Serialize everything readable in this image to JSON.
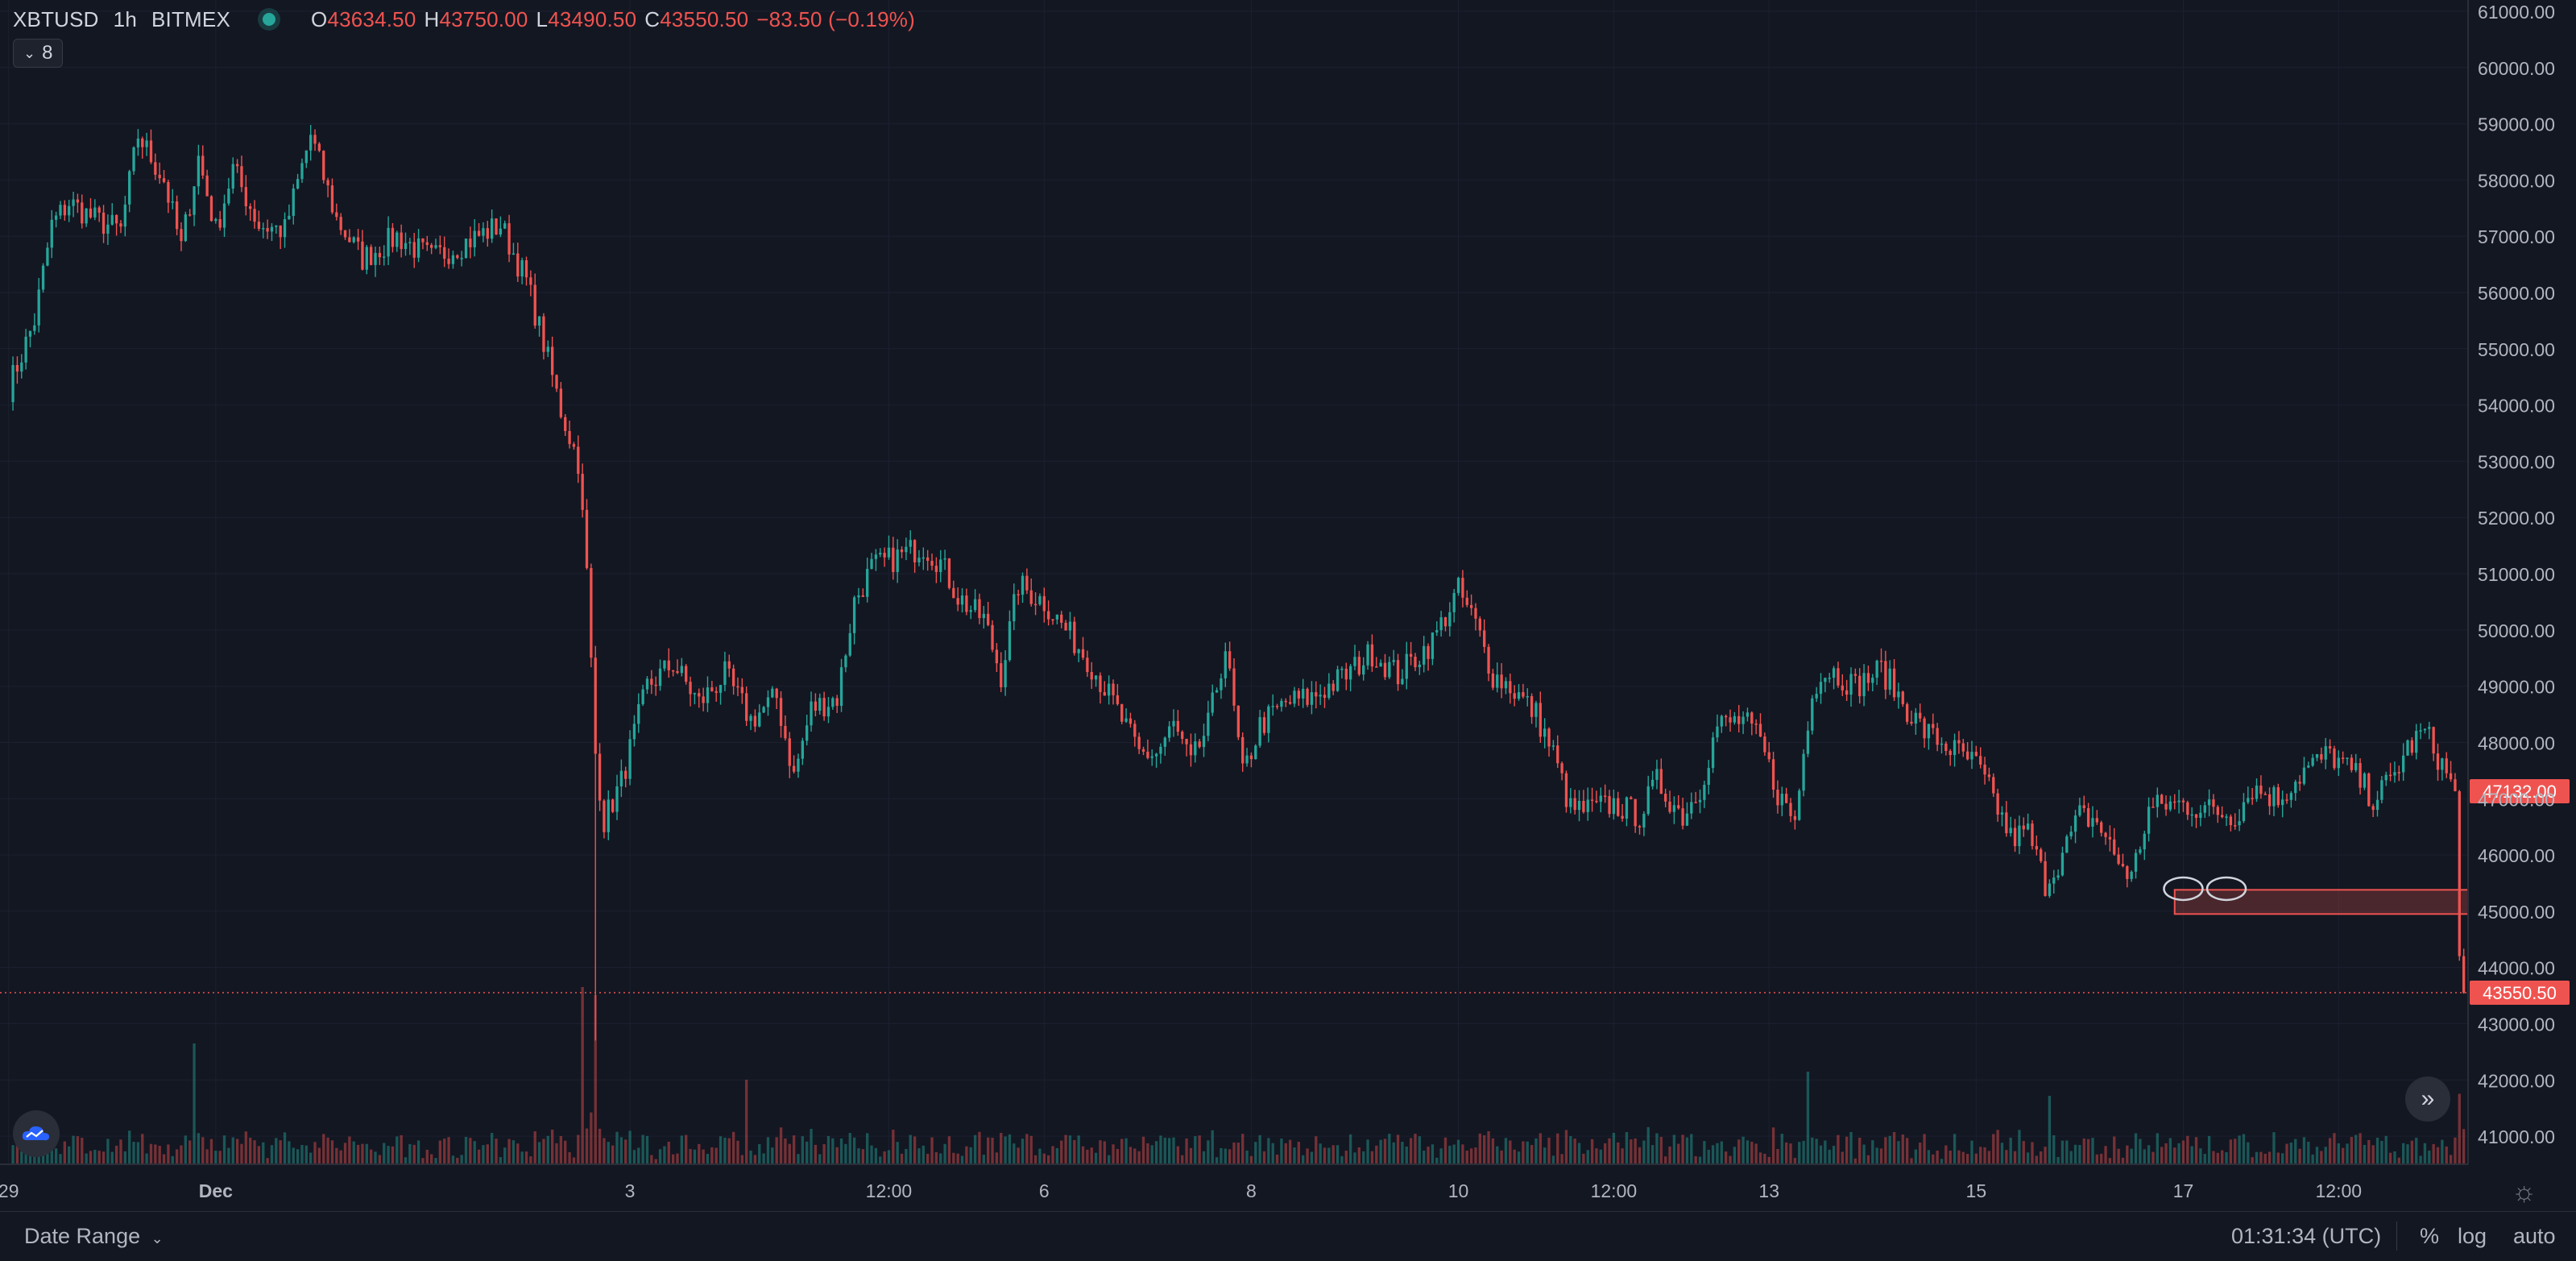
{
  "legend": {
    "symbol": "XBTUSD",
    "interval": "1h",
    "exchange": "BITMEX",
    "open_key": "O",
    "open": "43634.50",
    "high_key": "H",
    "high": "43750.00",
    "low_key": "L",
    "low": "43490.50",
    "close_key": "C",
    "close": "43550.50",
    "change": "−83.50 (−0.19%)",
    "indicators_count": "8",
    "collapse_icon": "chevron-down-icon"
  },
  "price_badges": {
    "marker": "47132.00",
    "last": "43550.50"
  },
  "bottom_bar": {
    "date_range": "Date Range",
    "clock": "01:31:34 (UTC)",
    "percent": "%",
    "log": "log",
    "auto": "auto"
  },
  "colors": {
    "background": "#131722",
    "up": "#26a69a",
    "down": "#ef5350",
    "grid": "#1c2030",
    "axis_text": "#b2b5be"
  },
  "chart_data": {
    "type": "candlestick",
    "symbol": "XBTUSD",
    "interval": "1h",
    "y_axis_ticks": [
      41000,
      42000,
      43000,
      44000,
      45000,
      46000,
      47000,
      48000,
      49000,
      50000,
      51000,
      52000,
      53000,
      54000,
      55000,
      56000,
      57000,
      58000,
      59000,
      60000,
      61000
    ],
    "y_axis_labels": [
      "41000.00",
      "42000.00",
      "43000.00",
      "44000.00",
      "45000.00",
      "46000.00",
      "47000.00",
      "48000.00",
      "49000.00",
      "50000.00",
      "51000.00",
      "52000.00",
      "53000.00",
      "54000.00",
      "55000.00",
      "56000.00",
      "57000.00",
      "58000.00",
      "59000.00",
      "60000.00",
      "61000.00"
    ],
    "ylim": [
      40500,
      61200
    ],
    "x_axis_labels": [
      "29",
      "Dec",
      "3",
      "12:00",
      "6",
      "8",
      "10",
      "12:00",
      "13",
      "15",
      "17",
      "12:00"
    ],
    "x_axis_label_hours": [
      0,
      48,
      144,
      204,
      240,
      288,
      336,
      372,
      408,
      456,
      504,
      540
    ],
    "x_range_hours": [
      -2,
      570
    ],
    "last_price_line": 43550.5,
    "marker_line": 47132.0,
    "support_zone": {
      "from_hour": 502,
      "to_hour": 570,
      "low": 44950,
      "high": 45380
    },
    "highlight_lows_hours": [
      504,
      514
    ],
    "price_path": [
      [
        0,
        54300
      ],
      [
        6,
        55500
      ],
      [
        10,
        57200
      ],
      [
        14,
        57600
      ],
      [
        20,
        57300
      ],
      [
        26,
        57100
      ],
      [
        30,
        58800
      ],
      [
        36,
        58000
      ],
      [
        40,
        56800
      ],
      [
        44,
        58400
      ],
      [
        48,
        57100
      ],
      [
        52,
        58200
      ],
      [
        58,
        57200
      ],
      [
        64,
        57100
      ],
      [
        70,
        58800
      ],
      [
        76,
        57300
      ],
      [
        82,
        56600
      ],
      [
        90,
        57000
      ],
      [
        98,
        56600
      ],
      [
        106,
        56900
      ],
      [
        114,
        57200
      ],
      [
        120,
        56200
      ],
      [
        124,
        55100
      ],
      [
        128,
        53900
      ],
      [
        132,
        53000
      ],
      [
        134,
        51000
      ],
      [
        136,
        47800
      ],
      [
        138,
        46600
      ],
      [
        142,
        47300
      ],
      [
        148,
        49000
      ],
      [
        154,
        49400
      ],
      [
        160,
        48700
      ],
      [
        166,
        49200
      ],
      [
        172,
        48400
      ],
      [
        178,
        48800
      ],
      [
        182,
        47400
      ],
      [
        186,
        48600
      ],
      [
        192,
        48800
      ],
      [
        196,
        50500
      ],
      [
        200,
        51100
      ],
      [
        206,
        51300
      ],
      [
        212,
        51500
      ],
      [
        216,
        51200
      ],
      [
        220,
        50600
      ],
      [
        224,
        50300
      ],
      [
        226,
        50200
      ],
      [
        230,
        49200
      ],
      [
        234,
        50800
      ],
      [
        240,
        50500
      ],
      [
        244,
        50100
      ],
      [
        250,
        49500
      ],
      [
        256,
        48700
      ],
      [
        262,
        47800
      ],
      [
        266,
        47800
      ],
      [
        270,
        48300
      ],
      [
        274,
        47600
      ],
      [
        278,
        48300
      ],
      [
        282,
        49700
      ],
      [
        286,
        47400
      ],
      [
        290,
        48300
      ],
      [
        296,
        48700
      ],
      [
        302,
        48800
      ],
      [
        310,
        49200
      ],
      [
        316,
        49600
      ],
      [
        322,
        49200
      ],
      [
        330,
        49800
      ],
      [
        336,
        50700
      ],
      [
        340,
        50100
      ],
      [
        344,
        49200
      ],
      [
        348,
        49000
      ],
      [
        354,
        48500
      ],
      [
        358,
        47800
      ],
      [
        362,
        46800
      ],
      [
        366,
        46800
      ],
      [
        372,
        46900
      ],
      [
        378,
        46700
      ],
      [
        382,
        47300
      ],
      [
        388,
        46700
      ],
      [
        392,
        47200
      ],
      [
        396,
        48300
      ],
      [
        402,
        48400
      ],
      [
        406,
        48000
      ],
      [
        410,
        47100
      ],
      [
        414,
        46600
      ],
      [
        418,
        49000
      ],
      [
        422,
        49300
      ],
      [
        428,
        49000
      ],
      [
        434,
        49300
      ],
      [
        440,
        48600
      ],
      [
        444,
        48200
      ],
      [
        450,
        47900
      ],
      [
        456,
        47600
      ],
      [
        460,
        47000
      ],
      [
        464,
        46300
      ],
      [
        468,
        46400
      ],
      [
        472,
        45500
      ],
      [
        476,
        46000
      ],
      [
        480,
        46700
      ],
      [
        484,
        46600
      ],
      [
        488,
        46000
      ],
      [
        492,
        45600
      ],
      [
        496,
        46800
      ],
      [
        500,
        46900
      ],
      [
        504,
        46900
      ],
      [
        510,
        46800
      ],
      [
        516,
        46700
      ],
      [
        520,
        47200
      ],
      [
        526,
        47000
      ],
      [
        532,
        47500
      ],
      [
        538,
        47800
      ],
      [
        544,
        47400
      ],
      [
        548,
        47000
      ],
      [
        552,
        47300
      ],
      [
        556,
        47900
      ],
      [
        560,
        48200
      ],
      [
        564,
        47600
      ],
      [
        567,
        47132
      ],
      [
        568,
        44200
      ],
      [
        569,
        43550.5
      ]
    ],
    "volume_note": "volume histogram shown at bottom of pane, green for up candles, red for down candles"
  }
}
